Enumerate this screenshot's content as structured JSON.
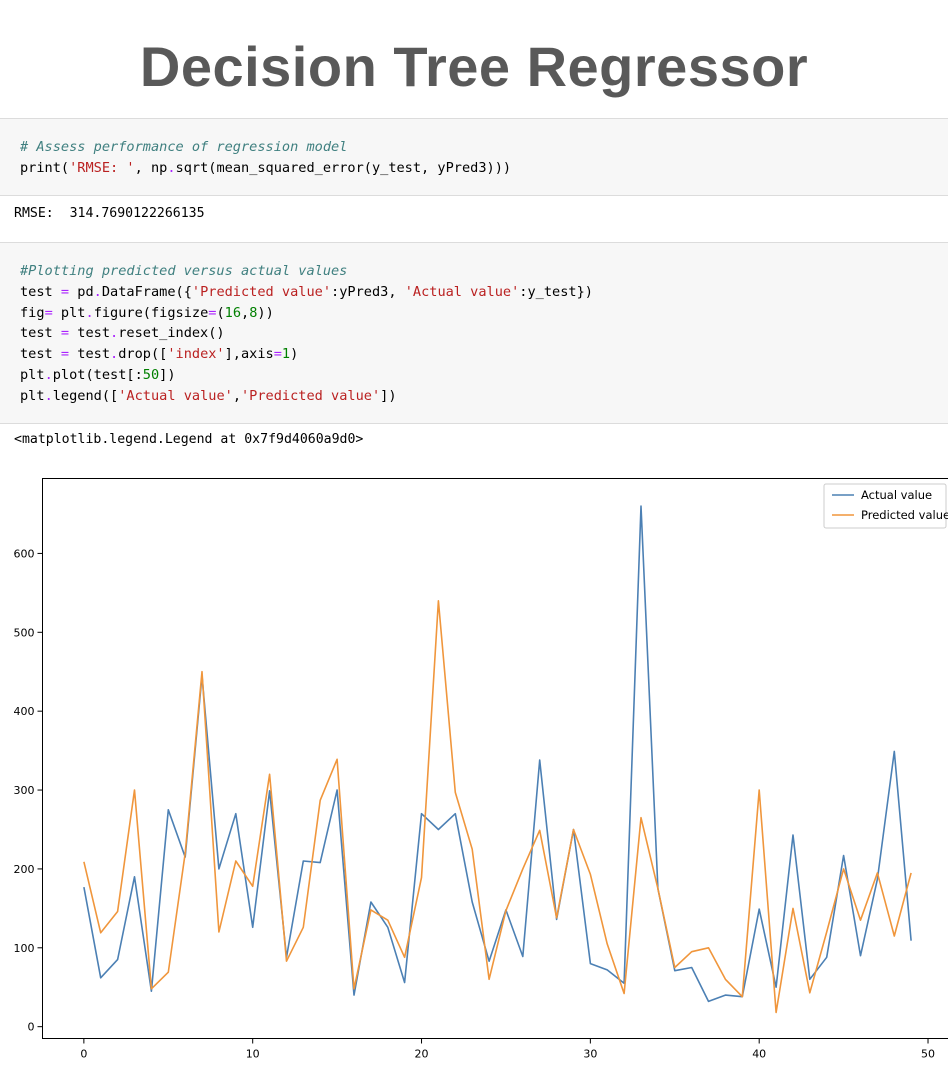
{
  "title": "Decision Tree Regressor",
  "cell1": {
    "lines": [
      [
        {
          "t": "# Assess performance of regression model",
          "c": "cm"
        }
      ],
      [
        {
          "t": "print(",
          "c": "bk"
        },
        {
          "t": "'RMSE: '",
          "c": "st"
        },
        {
          "t": ", np",
          "c": "bk"
        },
        {
          "t": ".",
          "c": "op"
        },
        {
          "t": "sqrt(mean_squared_error(y_test, yPred3)))",
          "c": "bk"
        }
      ]
    ],
    "output": "RMSE:  314.7690122266135"
  },
  "cell2": {
    "lines": [
      [
        {
          "t": "#Plotting predicted versus actual values",
          "c": "cm"
        }
      ],
      [
        {
          "t": "test ",
          "c": "bk"
        },
        {
          "t": "=",
          "c": "op"
        },
        {
          "t": " pd",
          "c": "bk"
        },
        {
          "t": ".",
          "c": "op"
        },
        {
          "t": "DataFrame({",
          "c": "bk"
        },
        {
          "t": "'Predicted value'",
          "c": "st"
        },
        {
          "t": ":yPred3, ",
          "c": "bk"
        },
        {
          "t": "'Actual value'",
          "c": "st"
        },
        {
          "t": ":y_test})",
          "c": "bk"
        }
      ],
      [
        {
          "t": "fig",
          "c": "bk"
        },
        {
          "t": "=",
          "c": "op"
        },
        {
          "t": " plt",
          "c": "bk"
        },
        {
          "t": ".",
          "c": "op"
        },
        {
          "t": "figure(figsize",
          "c": "bk"
        },
        {
          "t": "=",
          "c": "op"
        },
        {
          "t": "(",
          "c": "bk"
        },
        {
          "t": "16",
          "c": "nu"
        },
        {
          "t": ",",
          "c": "bk"
        },
        {
          "t": "8",
          "c": "nu"
        },
        {
          "t": "))",
          "c": "bk"
        }
      ],
      [
        {
          "t": "test ",
          "c": "bk"
        },
        {
          "t": "=",
          "c": "op"
        },
        {
          "t": " test",
          "c": "bk"
        },
        {
          "t": ".",
          "c": "op"
        },
        {
          "t": "reset_index()",
          "c": "bk"
        }
      ],
      [
        {
          "t": "test ",
          "c": "bk"
        },
        {
          "t": "=",
          "c": "op"
        },
        {
          "t": " test",
          "c": "bk"
        },
        {
          "t": ".",
          "c": "op"
        },
        {
          "t": "drop([",
          "c": "bk"
        },
        {
          "t": "'index'",
          "c": "st"
        },
        {
          "t": "],axis",
          "c": "bk"
        },
        {
          "t": "=",
          "c": "op"
        },
        {
          "t": "1",
          "c": "nu"
        },
        {
          "t": ")",
          "c": "bk"
        }
      ],
      [
        {
          "t": "plt",
          "c": "bk"
        },
        {
          "t": ".",
          "c": "op"
        },
        {
          "t": "plot(test[:",
          "c": "bk"
        },
        {
          "t": "50",
          "c": "nu"
        },
        {
          "t": "])",
          "c": "bk"
        }
      ],
      [
        {
          "t": "plt",
          "c": "bk"
        },
        {
          "t": ".",
          "c": "op"
        },
        {
          "t": "legend([",
          "c": "bk"
        },
        {
          "t": "'Actual value'",
          "c": "st"
        },
        {
          "t": ",",
          "c": "bk"
        },
        {
          "t": "'Predicted value'",
          "c": "st"
        },
        {
          "t": "])",
          "c": "bk"
        }
      ]
    ],
    "output": "<matplotlib.legend.Legend at 0x7f9d4060a9d0>"
  },
  "colors": {
    "actual": "#4c80b4",
    "predicted": "#f0963c"
  },
  "chart_data": {
    "type": "line",
    "title": "",
    "xlabel": "",
    "ylabel": "",
    "xlim": [
      -2.45,
      51.45
    ],
    "ylim": [
      -15,
      695
    ],
    "xticks": [
      0,
      10,
      20,
      30,
      40,
      50
    ],
    "yticks": [
      0,
      100,
      200,
      300,
      400,
      500,
      600
    ],
    "legend_position": "top-right",
    "grid": false,
    "x": [
      0,
      1,
      2,
      3,
      4,
      5,
      6,
      7,
      8,
      9,
      10,
      11,
      12,
      13,
      14,
      15,
      16,
      17,
      18,
      19,
      20,
      21,
      22,
      23,
      24,
      25,
      26,
      27,
      28,
      29,
      30,
      31,
      32,
      33,
      34,
      35,
      36,
      37,
      38,
      39,
      40,
      41,
      42,
      43,
      44,
      45,
      46,
      47,
      48,
      49
    ],
    "series": [
      {
        "name": "Actual value",
        "color": "#4c80b4",
        "values": [
          177,
          62,
          85,
          190,
          45,
          275,
          215,
          445,
          200,
          270,
          126,
          299,
          88,
          210,
          208,
          300,
          40,
          158,
          126,
          56,
          270,
          250,
          270,
          158,
          83,
          148,
          89,
          338,
          136,
          250,
          80,
          72,
          55,
          660,
          175,
          71,
          75,
          32,
          40,
          38,
          149,
          50,
          243,
          60,
          88,
          217,
          90,
          187,
          349,
          109
        ]
      },
      {
        "name": "Predicted value",
        "color": "#f0963c",
        "values": [
          209,
          119,
          146,
          300,
          48,
          69,
          220,
          450,
          120,
          210,
          178,
          320,
          83,
          126,
          287,
          339,
          48,
          148,
          135,
          88,
          189,
          540,
          297,
          225,
          60,
          147,
          200,
          249,
          138,
          250,
          193,
          105,
          42,
          265,
          175,
          75,
          95,
          100,
          60,
          38,
          300,
          18,
          150,
          43,
          120,
          200,
          135,
          195,
          115,
          195
        ]
      }
    ]
  }
}
